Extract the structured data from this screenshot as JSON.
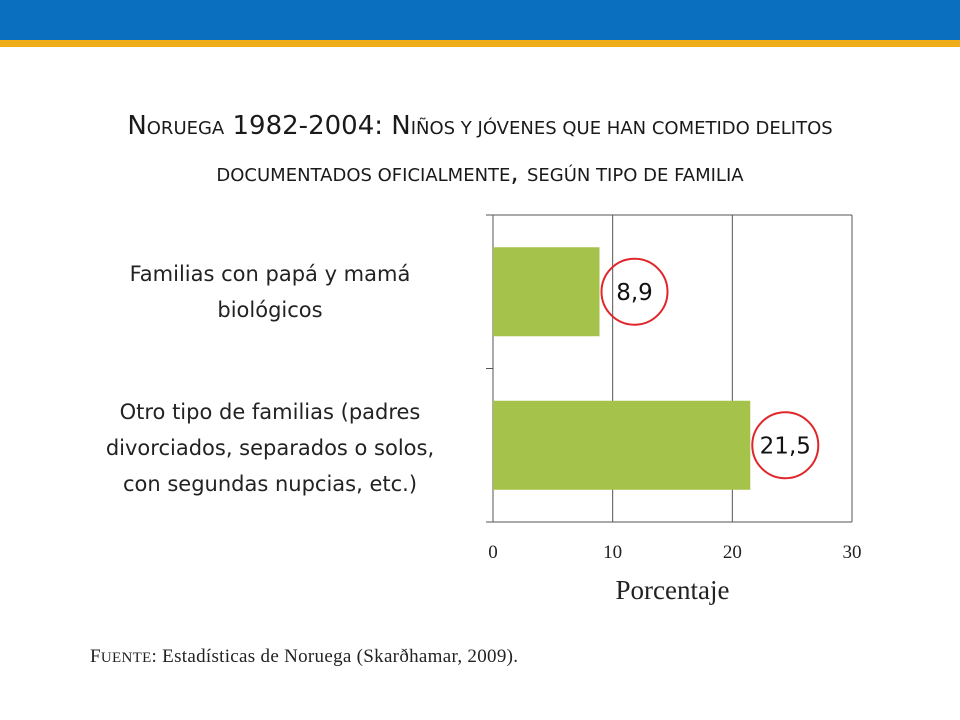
{
  "slide": {
    "title_segments": [
      {
        "text": "N",
        "style": "cap"
      },
      {
        "text": "ORUEGA",
        "style": "sc"
      },
      {
        "text": " 1982-2004: ",
        "style": "cap"
      },
      {
        "text": "N",
        "style": "cap"
      },
      {
        "text": "IÑOS Y JÓVENES QUE HAN COMETIDO DELITOS",
        "style": "sc"
      },
      {
        "text": "",
        "style": "br"
      },
      {
        "text": "DOCUMENTADOS OFICIALMENTE",
        "style": "sc"
      },
      {
        "text": ", ",
        "style": "cap"
      },
      {
        "text": "SEGÚN TIPO DE FAMILIA",
        "style": "sc"
      }
    ],
    "source": {
      "prefix_cap": "F",
      "prefix_sc": "UENTE",
      "text": ": Estadísticas de Noruega (Skarðhamar, 2009)."
    }
  },
  "colors": {
    "bar": "#a5c24a",
    "circle": "#e0262b",
    "top_bar": "#0b6fc0",
    "top_stripe": "#f0ad1a"
  },
  "chart_data": {
    "type": "bar",
    "orientation": "horizontal",
    "categories": [
      "Familias con papá y mamá biológicos",
      "Otro tipo de familias (padres divorciados, separados o solos, con segundas nupcias, etc.)"
    ],
    "category_lines": [
      [
        "Familias con papá y mamá",
        "biológicos"
      ],
      [
        "Otro tipo de familias (padres",
        "divorciados, separados o solos,",
        "con segundas nupcias, etc.)"
      ]
    ],
    "values": [
      8.9,
      21.5
    ],
    "data_labels": [
      "8,9",
      "21,5"
    ],
    "xlabel": "Porcentaje",
    "xlim": [
      0,
      30
    ],
    "xticks": [
      0,
      10,
      20,
      30
    ],
    "xtick_labels": [
      "0",
      "10",
      "20",
      "30"
    ],
    "grid": true,
    "legend": "none",
    "title": "Noruega 1982-2004: Niños y jóvenes que han cometido delitos documentados oficialmente, según tipo de familia"
  }
}
